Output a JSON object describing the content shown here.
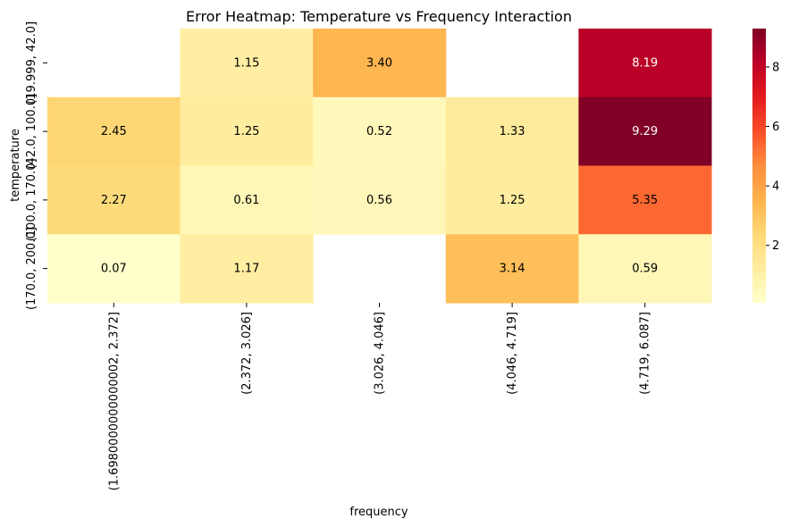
{
  "chart_data": {
    "type": "heatmap",
    "title": "Error Heatmap: Temperature vs Frequency Interaction",
    "xlabel": "frequency",
    "ylabel": "temperature",
    "x_categories": [
      "(1.6980000000000002, 2.372]",
      "(2.372, 3.026]",
      "(3.026, 4.046]",
      "(4.046, 4.719]",
      "(4.719, 6.087]"
    ],
    "y_categories": [
      "(19.999, 42.0]",
      "(42.0, 100.0]",
      "(100.0, 170.0]",
      "(170.0, 200.0]"
    ],
    "values": [
      [
        null,
        1.15,
        3.4,
        null,
        8.19
      ],
      [
        2.45,
        1.25,
        0.52,
        1.33,
        9.29
      ],
      [
        2.27,
        0.61,
        0.56,
        1.25,
        5.35
      ],
      [
        0.07,
        1.17,
        null,
        3.14,
        0.59
      ]
    ],
    "value_labels": [
      [
        "",
        "1.15",
        "3.40",
        "",
        "8.19"
      ],
      [
        "2.45",
        "1.25",
        "0.52",
        "1.33",
        "9.29"
      ],
      [
        "2.27",
        "0.61",
        "0.56",
        "1.25",
        "5.35"
      ],
      [
        "0.07",
        "1.17",
        "",
        "3.14",
        "0.59"
      ]
    ],
    "colormap": "YlOrRd",
    "vmin": 0.07,
    "vmax": 9.29,
    "colorbar_ticks": [
      2,
      4,
      6,
      8
    ],
    "colorbar_tick_labels": [
      "2",
      "4",
      "6",
      "8"
    ],
    "grid": false,
    "legend": "colorbar-right"
  }
}
